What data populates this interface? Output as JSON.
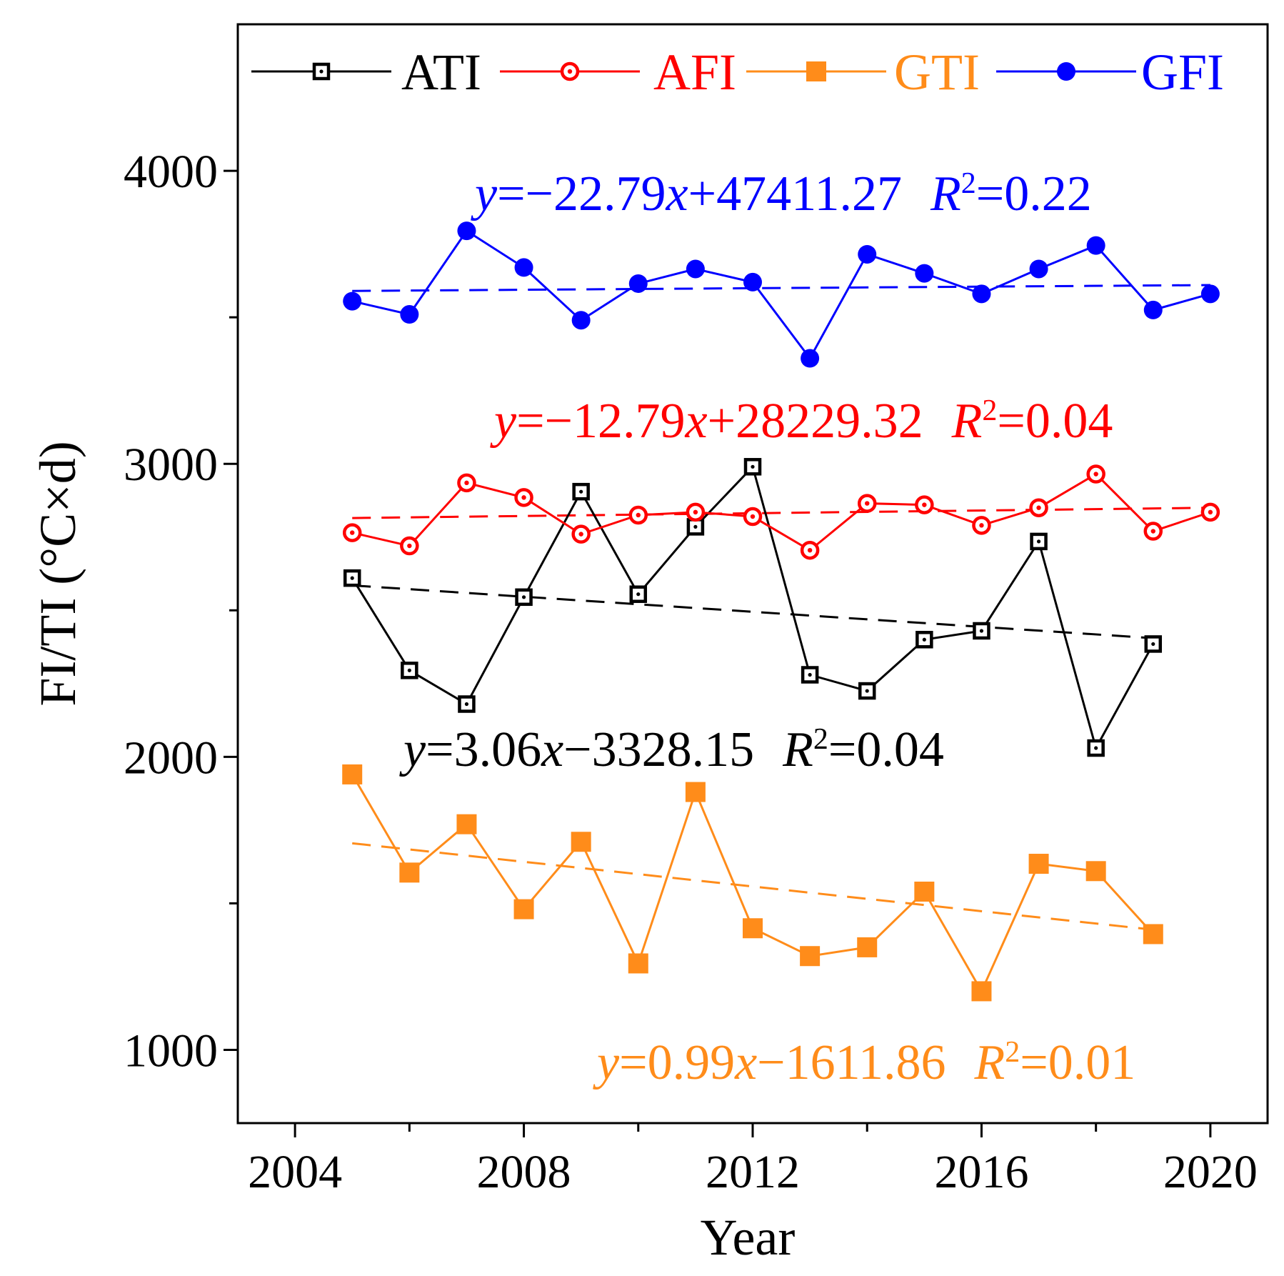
{
  "chart_data": {
    "type": "line",
    "title": "",
    "xlabel": "Year",
    "ylabel": "FI/TI (°C×d)",
    "xlim": [
      2003,
      2021
    ],
    "ylim": [
      750,
      4500
    ],
    "grid": false,
    "legend_position": "top",
    "x_ticks": [
      2004,
      2008,
      2012,
      2016,
      2020
    ],
    "x_tick_labels": [
      "2004",
      "2008",
      "2012",
      "2016",
      "2020"
    ],
    "y_ticks": [
      1000,
      2000,
      3000,
      4000
    ],
    "y_tick_labels": [
      "1000",
      "2000",
      "3000",
      "4000"
    ],
    "x_minor_ticks": [
      2006,
      2010,
      2014,
      2018
    ],
    "y_minor_ticks": [
      1500,
      2500,
      3500
    ],
    "series": [
      {
        "name": "ATI",
        "color": "#000000",
        "marker": "square-dot",
        "x": [
          2005,
          2006,
          2007,
          2008,
          2009,
          2010,
          2011,
          2012,
          2013,
          2014,
          2015,
          2016,
          2017,
          2018,
          2019
        ],
        "values": [
          2610,
          2295,
          2180,
          2545,
          2905,
          2555,
          2785,
          2990,
          2280,
          2225,
          2400,
          2430,
          2735,
          2030,
          2385
        ],
        "trend": {
          "x": [
            2005,
            2019
          ],
          "y": [
            2585,
            2405
          ]
        },
        "equation": {
          "lhs": "y",
          "eq": "=",
          "coef": "3.06",
          "x": "x",
          "rest": "−3328.15",
          "r": "R",
          "sup": "2",
          "rval": "=0.04"
        }
      },
      {
        "name": "AFI",
        "color": "#ff0000",
        "marker": "circle-dot",
        "x": [
          2005,
          2006,
          2007,
          2008,
          2009,
          2010,
          2011,
          2012,
          2013,
          2014,
          2015,
          2016,
          2017,
          2018,
          2019,
          2020
        ],
        "values": [
          2765,
          2720,
          2935,
          2885,
          2760,
          2825,
          2835,
          2820,
          2705,
          2865,
          2860,
          2790,
          2850,
          2965,
          2770,
          2835
        ],
        "trend": {
          "x": [
            2005,
            2020
          ],
          "y": [
            2815,
            2850
          ]
        },
        "equation": {
          "lhs": "y",
          "eq": "=−",
          "coef": "12.79",
          "x": "x",
          "rest": "+28229.32",
          "r": "R",
          "sup": "2",
          "rval": "=0.04"
        }
      },
      {
        "name": "GTI",
        "color": "#ff8c1a",
        "marker": "filled-square",
        "x": [
          2005,
          2006,
          2007,
          2008,
          2009,
          2010,
          2011,
          2012,
          2013,
          2014,
          2015,
          2016,
          2017,
          2018,
          2019
        ],
        "values": [
          1940,
          1605,
          1770,
          1480,
          1710,
          1295,
          1880,
          1415,
          1320,
          1350,
          1540,
          1200,
          1635,
          1610,
          1395
        ],
        "trend": {
          "x": [
            2005,
            2019
          ],
          "y": [
            1705,
            1410
          ]
        },
        "equation": {
          "lhs": "y",
          "eq": "=",
          "coef": "0.99",
          "x": "x",
          "rest": "−1611.86",
          "r": "R",
          "sup": "2",
          "rval": "=0.01"
        }
      },
      {
        "name": "GFI",
        "color": "#0000ff",
        "marker": "filled-circle",
        "x": [
          2005,
          2006,
          2007,
          2008,
          2009,
          2010,
          2011,
          2012,
          2013,
          2014,
          2015,
          2016,
          2017,
          2018,
          2019,
          2020
        ],
        "values": [
          3555,
          3510,
          3795,
          3670,
          3490,
          3615,
          3665,
          3620,
          3360,
          3715,
          3650,
          3580,
          3665,
          3745,
          3525,
          3580
        ],
        "trend": {
          "x": [
            2005,
            2020
          ],
          "y": [
            3590,
            3610
          ]
        },
        "equation": {
          "lhs": "y",
          "eq": "=−",
          "coef": "22.79",
          "x": "x",
          "rest": "+47411.27",
          "r": "R",
          "sup": "2",
          "rval": "=0.22"
        }
      }
    ]
  }
}
